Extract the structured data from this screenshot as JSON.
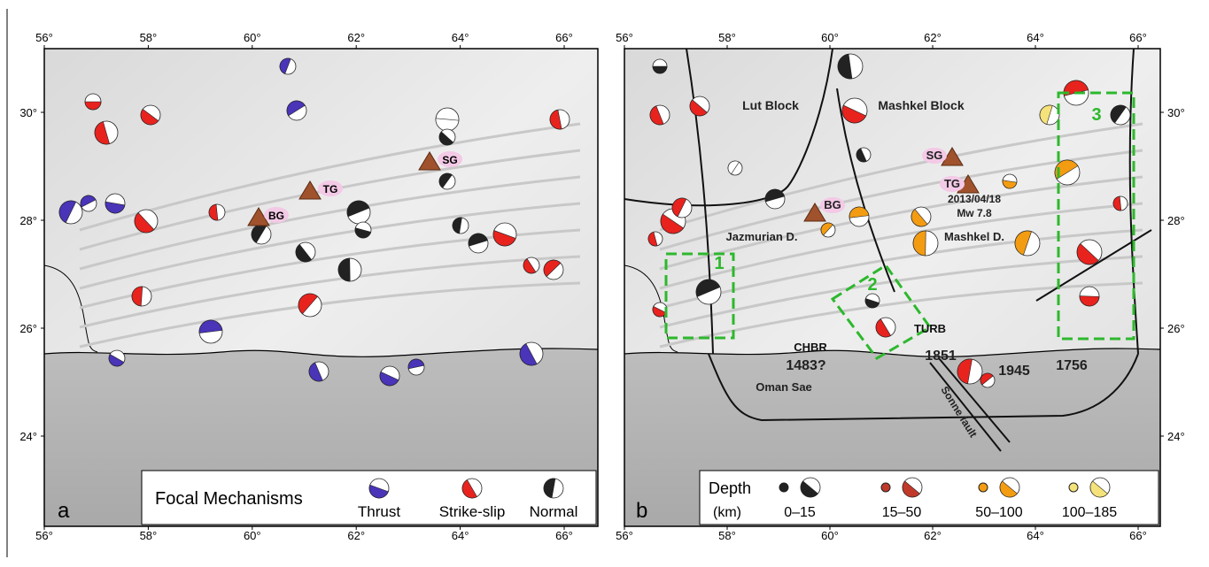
{
  "panel_a": {
    "label": "a",
    "lon_ticks": [
      "56°",
      "58°",
      "60°",
      "62°",
      "64°",
      "66°"
    ],
    "lat_ticks": [
      "24°",
      "26°",
      "28°",
      "30°"
    ],
    "places": [
      "SG",
      "TG",
      "BG"
    ],
    "legend": {
      "title": "Focal Mechanisms",
      "items": [
        "Thrust",
        "Strike-slip",
        "Normal"
      ]
    }
  },
  "panel_b": {
    "label": "b",
    "lon_ticks": [
      "56°",
      "58°",
      "60°",
      "62°",
      "64°",
      "66°"
    ],
    "lat_ticks": [
      "24°",
      "26°",
      "28°",
      "30°"
    ],
    "annotations": [
      "Lut Block",
      "Mashkel Block",
      "SG",
      "TG",
      "2013/04/18",
      "Mw 7.8",
      "BG",
      "Jazmurian D.",
      "Mashkel D.",
      "1",
      "2",
      "3",
      "TURB",
      "CHBR",
      "1483?",
      "1851",
      "1945",
      "1756",
      "Oman Sae",
      "Sonne fault"
    ],
    "legend": {
      "title": "Depth",
      "unit": "(km)",
      "items": [
        "0–15",
        "15–50",
        "50–100",
        "100–185"
      ]
    }
  }
}
